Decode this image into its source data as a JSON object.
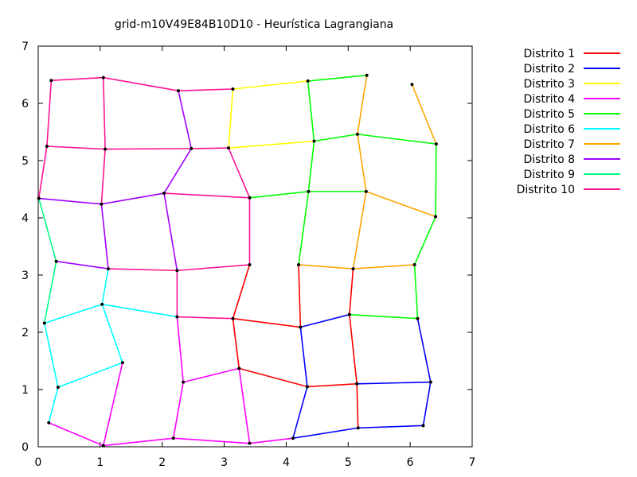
{
  "chart_data": {
    "type": "line",
    "title": "grid-m10V49E84B10D10 -  Heurística Lagrangiana",
    "xlim": [
      0,
      7
    ],
    "ylim": [
      0,
      7
    ],
    "xticks": [
      0,
      1,
      2,
      3,
      4,
      5,
      6,
      7
    ],
    "yticks": [
      0,
      1,
      2,
      3,
      4,
      5,
      6,
      7
    ],
    "grid": false,
    "legend_position": "top-right, outside plot",
    "nodes": [
      [
        0.21,
        6.4
      ],
      [
        1.05,
        6.45
      ],
      [
        2.26,
        6.22
      ],
      [
        3.14,
        6.25
      ],
      [
        4.35,
        6.39
      ],
      [
        5.3,
        6.49
      ],
      [
        6.03,
        6.33
      ],
      [
        0.14,
        5.25
      ],
      [
        1.08,
        5.2
      ],
      [
        2.47,
        5.21
      ],
      [
        3.07,
        5.22
      ],
      [
        4.45,
        5.34
      ],
      [
        5.15,
        5.46
      ],
      [
        6.42,
        5.29
      ],
      [
        0.01,
        4.34
      ],
      [
        1.02,
        4.24
      ],
      [
        2.03,
        4.43
      ],
      [
        3.41,
        4.35
      ],
      [
        4.36,
        4.46
      ],
      [
        5.29,
        4.46
      ],
      [
        6.41,
        4.02
      ],
      [
        0.29,
        3.24
      ],
      [
        1.13,
        3.11
      ],
      [
        2.24,
        3.08
      ],
      [
        3.41,
        3.18
      ],
      [
        4.2,
        3.18
      ],
      [
        5.08,
        3.11
      ],
      [
        6.07,
        3.18
      ],
      [
        0.1,
        2.16
      ],
      [
        1.03,
        2.49
      ],
      [
        2.24,
        2.27
      ],
      [
        3.14,
        2.24
      ],
      [
        4.23,
        2.09
      ],
      [
        5.02,
        2.31
      ],
      [
        6.12,
        2.24
      ],
      [
        0.32,
        1.04
      ],
      [
        1.36,
        1.47
      ],
      [
        2.34,
        1.13
      ],
      [
        3.24,
        1.37
      ],
      [
        4.34,
        1.05
      ],
      [
        5.14,
        1.1
      ],
      [
        6.33,
        1.13
      ],
      [
        0.17,
        0.42
      ],
      [
        1.05,
        0.02
      ],
      [
        2.18,
        0.15
      ],
      [
        3.41,
        0.06
      ],
      [
        4.11,
        0.15
      ],
      [
        5.16,
        0.33
      ],
      [
        6.21,
        0.37
      ]
    ],
    "series": [
      {
        "name": "Distrito 1",
        "color": "#ff0000",
        "edges": [
          [
            31,
            24
          ],
          [
            31,
            38
          ],
          [
            38,
            39
          ],
          [
            39,
            40
          ],
          [
            40,
            47
          ],
          [
            25,
            32
          ],
          [
            31,
            32
          ],
          [
            33,
            40
          ],
          [
            26,
            33
          ]
        ]
      },
      {
        "name": "Distrito 2",
        "color": "#0000ff",
        "edges": [
          [
            32,
            33
          ],
          [
            32,
            39
          ],
          [
            39,
            46
          ],
          [
            46,
            47
          ],
          [
            47,
            48
          ],
          [
            40,
            41
          ],
          [
            41,
            48
          ],
          [
            34,
            41
          ]
        ]
      },
      {
        "name": "Distrito 3",
        "color": "#ffff00",
        "edges": [
          [
            3,
            4
          ],
          [
            3,
            10
          ],
          [
            10,
            11
          ]
        ]
      },
      {
        "name": "Distrito 4",
        "color": "#ff00ff",
        "edges": [
          [
            42,
            43
          ],
          [
            43,
            44
          ],
          [
            44,
            45
          ],
          [
            45,
            46
          ],
          [
            36,
            43
          ],
          [
            37,
            44
          ],
          [
            38,
            45
          ],
          [
            30,
            37
          ],
          [
            37,
            38
          ]
        ]
      },
      {
        "name": "Distrito 5",
        "color": "#00ff00",
        "edges": [
          [
            4,
            5
          ],
          [
            4,
            11
          ],
          [
            11,
            12
          ],
          [
            12,
            13
          ],
          [
            13,
            20
          ],
          [
            11,
            18
          ],
          [
            17,
            18
          ],
          [
            18,
            19
          ],
          [
            18,
            25
          ],
          [
            20,
            27
          ],
          [
            27,
            34
          ],
          [
            33,
            34
          ]
        ]
      },
      {
        "name": "Distrito 6",
        "color": "#00ffff",
        "edges": [
          [
            22,
            29
          ],
          [
            28,
            29
          ],
          [
            29,
            30
          ],
          [
            29,
            36
          ],
          [
            28,
            35
          ],
          [
            35,
            36
          ],
          [
            35,
            42
          ]
        ]
      },
      {
        "name": "Distrito 7",
        "color": "#ffa500",
        "edges": [
          [
            5,
            12
          ],
          [
            6,
            13
          ],
          [
            12,
            19
          ],
          [
            19,
            20
          ],
          [
            19,
            26
          ],
          [
            25,
            26
          ],
          [
            26,
            27
          ]
        ]
      },
      {
        "name": "Distrito 8",
        "color": "#a000ff",
        "edges": [
          [
            2,
            9
          ],
          [
            9,
            16
          ],
          [
            14,
            15
          ],
          [
            15,
            16
          ],
          [
            15,
            22
          ],
          [
            16,
            23
          ],
          [
            21,
            22
          ]
        ]
      },
      {
        "name": "Distrito 9",
        "color": "#00ff80",
        "edges": [
          [
            14,
            21
          ],
          [
            21,
            28
          ]
        ]
      },
      {
        "name": "Distrito 10",
        "color": "#ff1493",
        "edges": [
          [
            0,
            1
          ],
          [
            1,
            2
          ],
          [
            2,
            3
          ],
          [
            0,
            7
          ],
          [
            1,
            8
          ],
          [
            7,
            8
          ],
          [
            8,
            9
          ],
          [
            9,
            10
          ],
          [
            7,
            14
          ],
          [
            8,
            15
          ],
          [
            10,
            17
          ],
          [
            16,
            17
          ],
          [
            17,
            24
          ],
          [
            22,
            23
          ],
          [
            23,
            24
          ],
          [
            23,
            30
          ],
          [
            30,
            31
          ]
        ]
      }
    ]
  }
}
